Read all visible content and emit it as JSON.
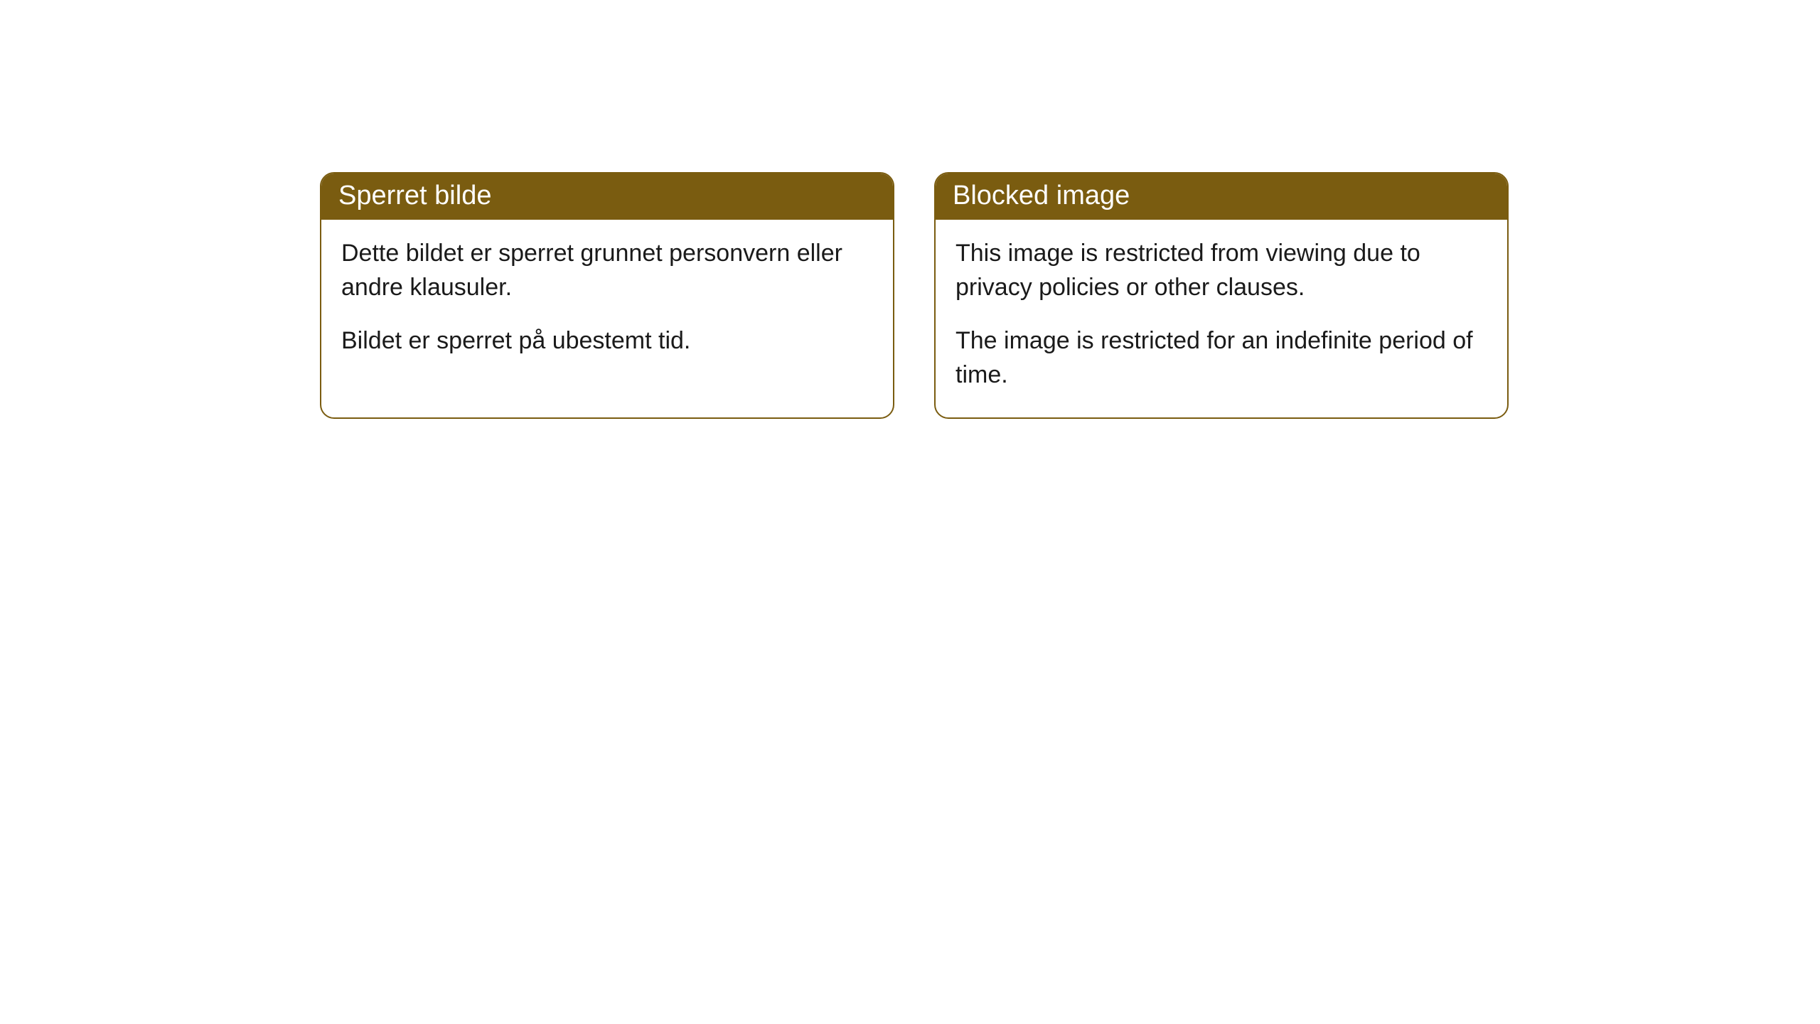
{
  "cards": [
    {
      "title": "Sperret bilde",
      "paragraph1": "Dette bildet er sperret grunnet personvern eller andre klausuler.",
      "paragraph2": "Bildet er sperret på ubestemt tid."
    },
    {
      "title": "Blocked image",
      "paragraph1": "This image is restricted from viewing due to privacy policies or other clauses.",
      "paragraph2": "The image is restricted for an indefinite period of time."
    }
  ],
  "styling": {
    "header_background_color": "#7a5c10",
    "header_text_color": "#ffffff",
    "border_color": "#7a5c10",
    "body_background_color": "#ffffff",
    "body_text_color": "#1a1a1a",
    "border_radius": 20,
    "header_fontsize": 38,
    "body_fontsize": 34
  }
}
